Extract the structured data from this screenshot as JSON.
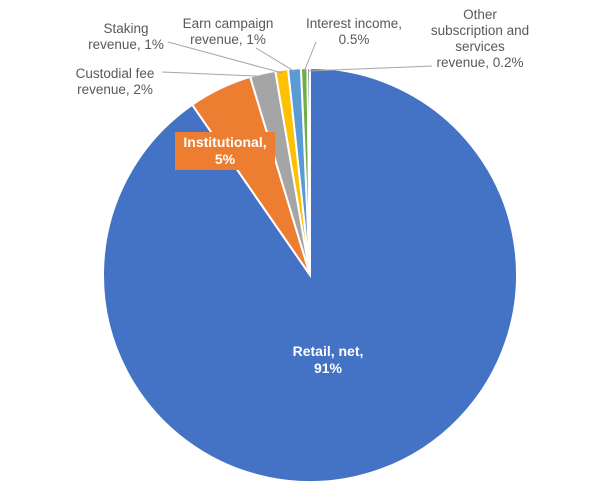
{
  "chart_data": {
    "type": "pie",
    "title": "",
    "slices": [
      {
        "label_lines": [
          "Retail, net,",
          "91%"
        ],
        "value": 91,
        "color": "#4472C4",
        "label_inside": true
      },
      {
        "label_lines": [
          "Institutional,",
          "5%"
        ],
        "value": 5,
        "color": "#ED7D31",
        "label_inside": true
      },
      {
        "label_lines": [
          "Custodial fee",
          "revenue, 2%"
        ],
        "value": 2,
        "color": "#A5A5A5",
        "label_inside": false
      },
      {
        "label_lines": [
          "Staking",
          "revenue, 1%"
        ],
        "value": 1,
        "color": "#FFC000",
        "label_inside": false
      },
      {
        "label_lines": [
          "Earn campaign",
          "revenue, 1%"
        ],
        "value": 1,
        "color": "#5B9BD5",
        "label_inside": false
      },
      {
        "label_lines": [
          "Interest income,",
          "0.5%"
        ],
        "value": 0.5,
        "color": "#70AD47",
        "label_inside": false
      },
      {
        "label_lines": [
          "Other",
          "subscription and",
          "services",
          "revenue, 0.2%"
        ],
        "value": 0.2,
        "color": "#264478",
        "label_inside": false
      }
    ],
    "slice_border_color": "#ffffff",
    "leader_line_color": "#A6A6A6"
  }
}
